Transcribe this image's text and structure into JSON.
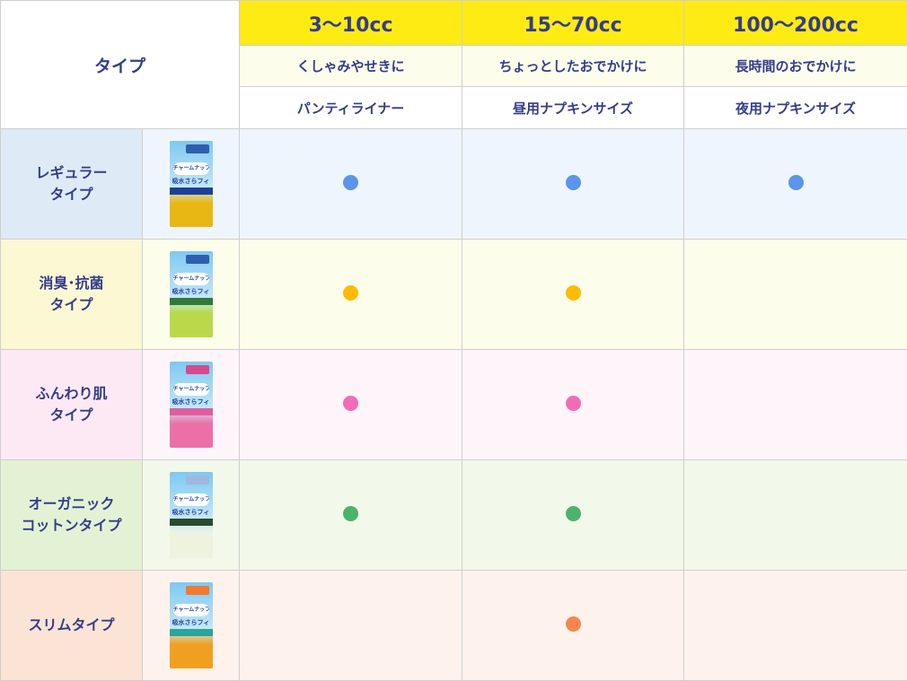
{
  "header": {
    "type_label": "タイプ",
    "columns": [
      {
        "volume": "3～10cc",
        "use": "くしゃみやせきに",
        "size": "パンティライナー"
      },
      {
        "volume": "15～70cc",
        "use": "ちょっとしたおでかけに",
        "size": "昼用ナプキンサイズ"
      },
      {
        "volume": "100～200cc",
        "use": "長時間のおでかけに",
        "size": "夜用ナプキンサイズ"
      }
    ]
  },
  "product_logo": {
    "brand": "チャームナップ",
    "name": "吸水さらフィ"
  },
  "rows": [
    {
      "label_line1": "レギュラー",
      "label_line2": "タイプ",
      "label_bg": "#deeaf6",
      "cell_bg": "#eff5fc",
      "dot_color": "#5b95ec",
      "available": [
        true,
        true,
        true
      ],
      "pkg_bottom": "#e9b714",
      "band": "#1f3f96",
      "top": "#2d5fb0"
    },
    {
      "label_line1": "消臭･抗菌",
      "label_line2": "タイプ",
      "label_bg": "#fbf8d3",
      "cell_bg": "#fdfdec",
      "dot_color": "#ffbb00",
      "available": [
        true,
        true,
        false
      ],
      "pkg_bottom": "#b9d94a",
      "band": "#2f7a3a",
      "top": "#2d5fb0"
    },
    {
      "label_line1": "ふんわり肌",
      "label_line2": "タイプ",
      "label_bg": "#fde9f3",
      "cell_bg": "#fef5fa",
      "dot_color": "#f06cb9",
      "available": [
        true,
        true,
        false
      ],
      "pkg_bottom": "#ec6fa7",
      "band": "#e05ea0",
      "top": "#d44a8e"
    },
    {
      "label_line1": "オーガニック",
      "label_line2": "コットンタイプ",
      "label_bg": "#e3f2d4",
      "cell_bg": "#f2f8ea",
      "dot_color": "#4cb36a",
      "available": [
        true,
        true,
        false
      ],
      "pkg_bottom": "#eef3e0",
      "band": "#2c4a2c",
      "top": "#9fb8e0"
    },
    {
      "label_line1": "スリムタイプ",
      "label_line2": "",
      "label_bg": "#fbe4d5",
      "cell_bg": "#fdf3ec",
      "dot_color": "#f9864f",
      "available": [
        false,
        true,
        false
      ],
      "pkg_bottom": "#f0a020",
      "band": "#2aa59a",
      "top": "#f07a30"
    }
  ]
}
